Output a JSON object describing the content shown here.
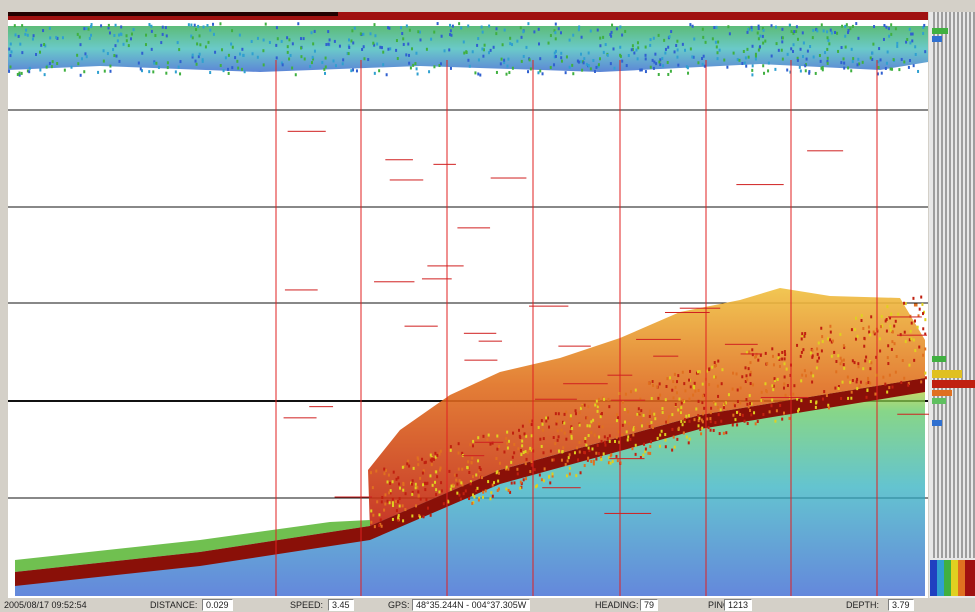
{
  "status_bar": {
    "timestamp": "2005/08/17 09:52:54",
    "fields": [
      {
        "label": "DISTANCE:",
        "value": 0.029
      },
      {
        "label": "SPEED:",
        "value": 3.45
      },
      {
        "label": "GPS:",
        "value": "48°35.244N - 004°37.305W"
      },
      {
        "label": "HEADING:",
        "value": 79
      },
      {
        "label": "PING:",
        "value": 1213
      },
      {
        "label": "DEPTH:",
        "value": 3.79
      }
    ]
  }
}
